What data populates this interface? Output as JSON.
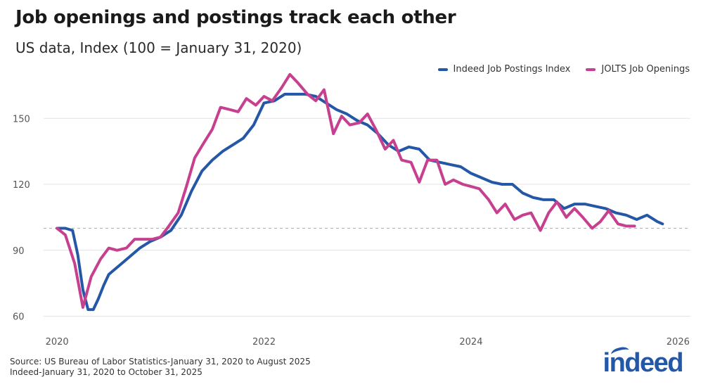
{
  "chart_data": {
    "type": "line",
    "title": "Job openings and postings track each other",
    "subtitle": "US data, Index (100 = January 31, 2020)",
    "xlabel": "",
    "ylabel": "",
    "xlim": [
      2019.87,
      2026.12
    ],
    "ylim": [
      56,
      168
    ],
    "yticks": [
      60,
      90,
      120,
      150
    ],
    "xticks": [
      "2020",
      "2022",
      "2024",
      "2026"
    ],
    "xtick_values": [
      2020,
      2022,
      2024,
      2026
    ],
    "reference_line": 100,
    "legend_position": "top-right",
    "series": [
      {
        "name": "Indeed Job Postings Index",
        "color": "#2557a7",
        "x": [
          2020.0,
          2020.08,
          2020.15,
          2020.2,
          2020.25,
          2020.3,
          2020.35,
          2020.4,
          2020.45,
          2020.5,
          2020.6,
          2020.7,
          2020.8,
          2020.9,
          2021.0,
          2021.1,
          2021.2,
          2021.3,
          2021.4,
          2021.5,
          2021.6,
          2021.7,
          2021.8,
          2021.9,
          2022.0,
          2022.1,
          2022.2,
          2022.3,
          2022.4,
          2022.5,
          2022.6,
          2022.7,
          2022.8,
          2022.9,
          2023.0,
          2023.1,
          2023.2,
          2023.3,
          2023.4,
          2023.5,
          2023.6,
          2023.7,
          2023.8,
          2023.9,
          2024.0,
          2024.1,
          2024.2,
          2024.3,
          2024.4,
          2024.5,
          2024.6,
          2024.7,
          2024.8,
          2024.9,
          2025.0,
          2025.1,
          2025.2,
          2025.3,
          2025.4,
          2025.5,
          2025.6,
          2025.7,
          2025.8
        ],
        "values": [
          100,
          100,
          99,
          88,
          72,
          63,
          63,
          68,
          74,
          79,
          83,
          87,
          91,
          94,
          96,
          99,
          106,
          117,
          126,
          131,
          135,
          138,
          141,
          147,
          157,
          158,
          161,
          161,
          161,
          160,
          157,
          154,
          152,
          149,
          147,
          143,
          138,
          135,
          137,
          136,
          131,
          130,
          129,
          128,
          125,
          123,
          121,
          120,
          120,
          116,
          114,
          113,
          113,
          109,
          111,
          111,
          110,
          109,
          107,
          106,
          104,
          106,
          103
        ],
        "end_value": 102
      },
      {
        "name": "JOLTS Job Openings",
        "color": "#c73f8f",
        "x": [
          2020.0,
          2020.08,
          2020.17,
          2020.25,
          2020.33,
          2020.42,
          2020.5,
          2020.58,
          2020.67,
          2020.75,
          2020.83,
          2020.92,
          2021.0,
          2021.08,
          2021.17,
          2021.25,
          2021.33,
          2021.42,
          2021.5,
          2021.58,
          2021.67,
          2021.75,
          2021.83,
          2021.92,
          2022.0,
          2022.08,
          2022.17,
          2022.25,
          2022.33,
          2022.42,
          2022.5,
          2022.58,
          2022.67,
          2022.75,
          2022.83,
          2022.92,
          2023.0,
          2023.08,
          2023.17,
          2023.25,
          2023.33,
          2023.42,
          2023.5,
          2023.58,
          2023.67,
          2023.75,
          2023.83,
          2023.92,
          2024.0,
          2024.08,
          2024.17,
          2024.25,
          2024.33,
          2024.42,
          2024.5,
          2024.58,
          2024.67,
          2024.75,
          2024.83,
          2024.92,
          2025.0,
          2025.08,
          2025.17,
          2025.25,
          2025.33,
          2025.42,
          2025.5,
          2025.58
        ],
        "values": [
          100,
          97,
          84,
          64,
          78,
          86,
          91,
          90,
          91,
          95,
          95,
          95,
          96,
          101,
          107,
          119,
          132,
          139,
          145,
          155,
          154,
          153,
          159,
          156,
          160,
          158,
          164,
          170,
          166,
          161,
          158,
          163,
          143,
          151,
          147,
          148,
          152,
          145,
          136,
          140,
          131,
          130,
          121,
          131,
          131,
          120,
          122,
          120,
          119,
          118,
          113,
          107,
          111,
          104,
          106,
          107,
          99,
          107,
          112,
          105,
          109,
          105,
          100,
          103,
          108,
          102,
          101,
          101
        ]
      }
    ]
  },
  "footer": {
    "source_line1": "Source: US Bureau of Labor Statistics-January 31, 2020 to August 2025",
    "source_line2": "Indeed-January 31, 2020 to October 31, 2025",
    "logo_text": "indeed"
  }
}
